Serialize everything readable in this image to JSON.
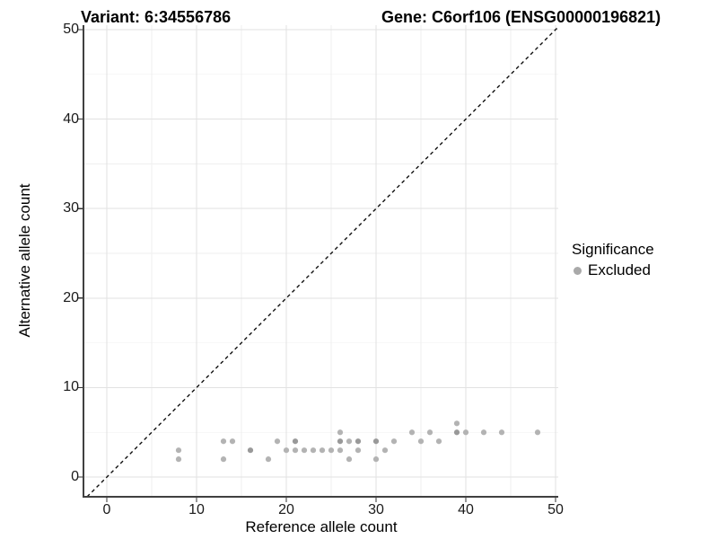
{
  "titles": {
    "variant": "Variant: 6:34556786",
    "gene": "Gene: C6orf106 (ENSG00000196821)"
  },
  "legend": {
    "title": "Significance",
    "items": [
      {
        "label": "Excluded",
        "color": "#a9a9a9"
      }
    ]
  },
  "chart_data": {
    "type": "scatter",
    "title": "Variant: 6:34556786 | Gene: C6orf106 (ENSG00000196821)",
    "xlabel": "Reference allele count",
    "ylabel": "Alternative allele count",
    "xlim": [
      -2.5,
      50.3
    ],
    "ylim": [
      -2.2,
      50.5
    ],
    "x_ticks": [
      0,
      10,
      20,
      30,
      40,
      50
    ],
    "y_ticks": [
      0,
      10,
      20,
      30,
      40,
      50
    ],
    "x_minor_ticks": [
      5,
      15,
      25,
      35,
      45
    ],
    "y_minor_ticks": [
      5,
      15,
      25,
      35,
      45
    ],
    "grid": true,
    "legend_position": "right",
    "reference_line": {
      "type": "identity y=x",
      "style": "dashed",
      "color": "#111111"
    },
    "series": [
      {
        "name": "Excluded",
        "color": "#b3b3b3",
        "darker_color": "#999999",
        "points": [
          [
            8,
            2
          ],
          [
            8,
            3
          ],
          [
            13,
            2
          ],
          [
            13,
            4
          ],
          [
            14,
            4
          ],
          [
            16,
            3
          ],
          [
            18,
            2
          ],
          [
            19,
            4
          ],
          [
            20,
            3
          ],
          [
            21,
            3
          ],
          [
            21,
            4
          ],
          [
            22,
            3
          ],
          [
            23,
            3
          ],
          [
            24,
            3
          ],
          [
            25,
            3
          ],
          [
            26,
            3
          ],
          [
            26,
            4
          ],
          [
            26,
            5
          ],
          [
            27,
            2
          ],
          [
            27,
            4
          ],
          [
            28,
            3
          ],
          [
            28,
            4
          ],
          [
            30,
            2
          ],
          [
            30,
            4
          ],
          [
            31,
            3
          ],
          [
            32,
            4
          ],
          [
            34,
            5
          ],
          [
            35,
            4
          ],
          [
            36,
            5
          ],
          [
            37,
            4
          ],
          [
            39,
            5
          ],
          [
            39,
            6
          ],
          [
            40,
            5
          ],
          [
            42,
            5
          ],
          [
            44,
            5
          ],
          [
            48,
            5
          ]
        ],
        "darker_overlap_points": [
          [
            16,
            3
          ],
          [
            21,
            4
          ],
          [
            26,
            4
          ],
          [
            28,
            4
          ],
          [
            30,
            4
          ],
          [
            39,
            5
          ]
        ]
      }
    ]
  },
  "colors": {
    "background": "#ffffff",
    "grid_major": "#e2e2e2",
    "grid_minor": "#efefef",
    "axis_line": "#404040",
    "tick_mark": "#333333",
    "tick_text": "#1a1a1a"
  }
}
